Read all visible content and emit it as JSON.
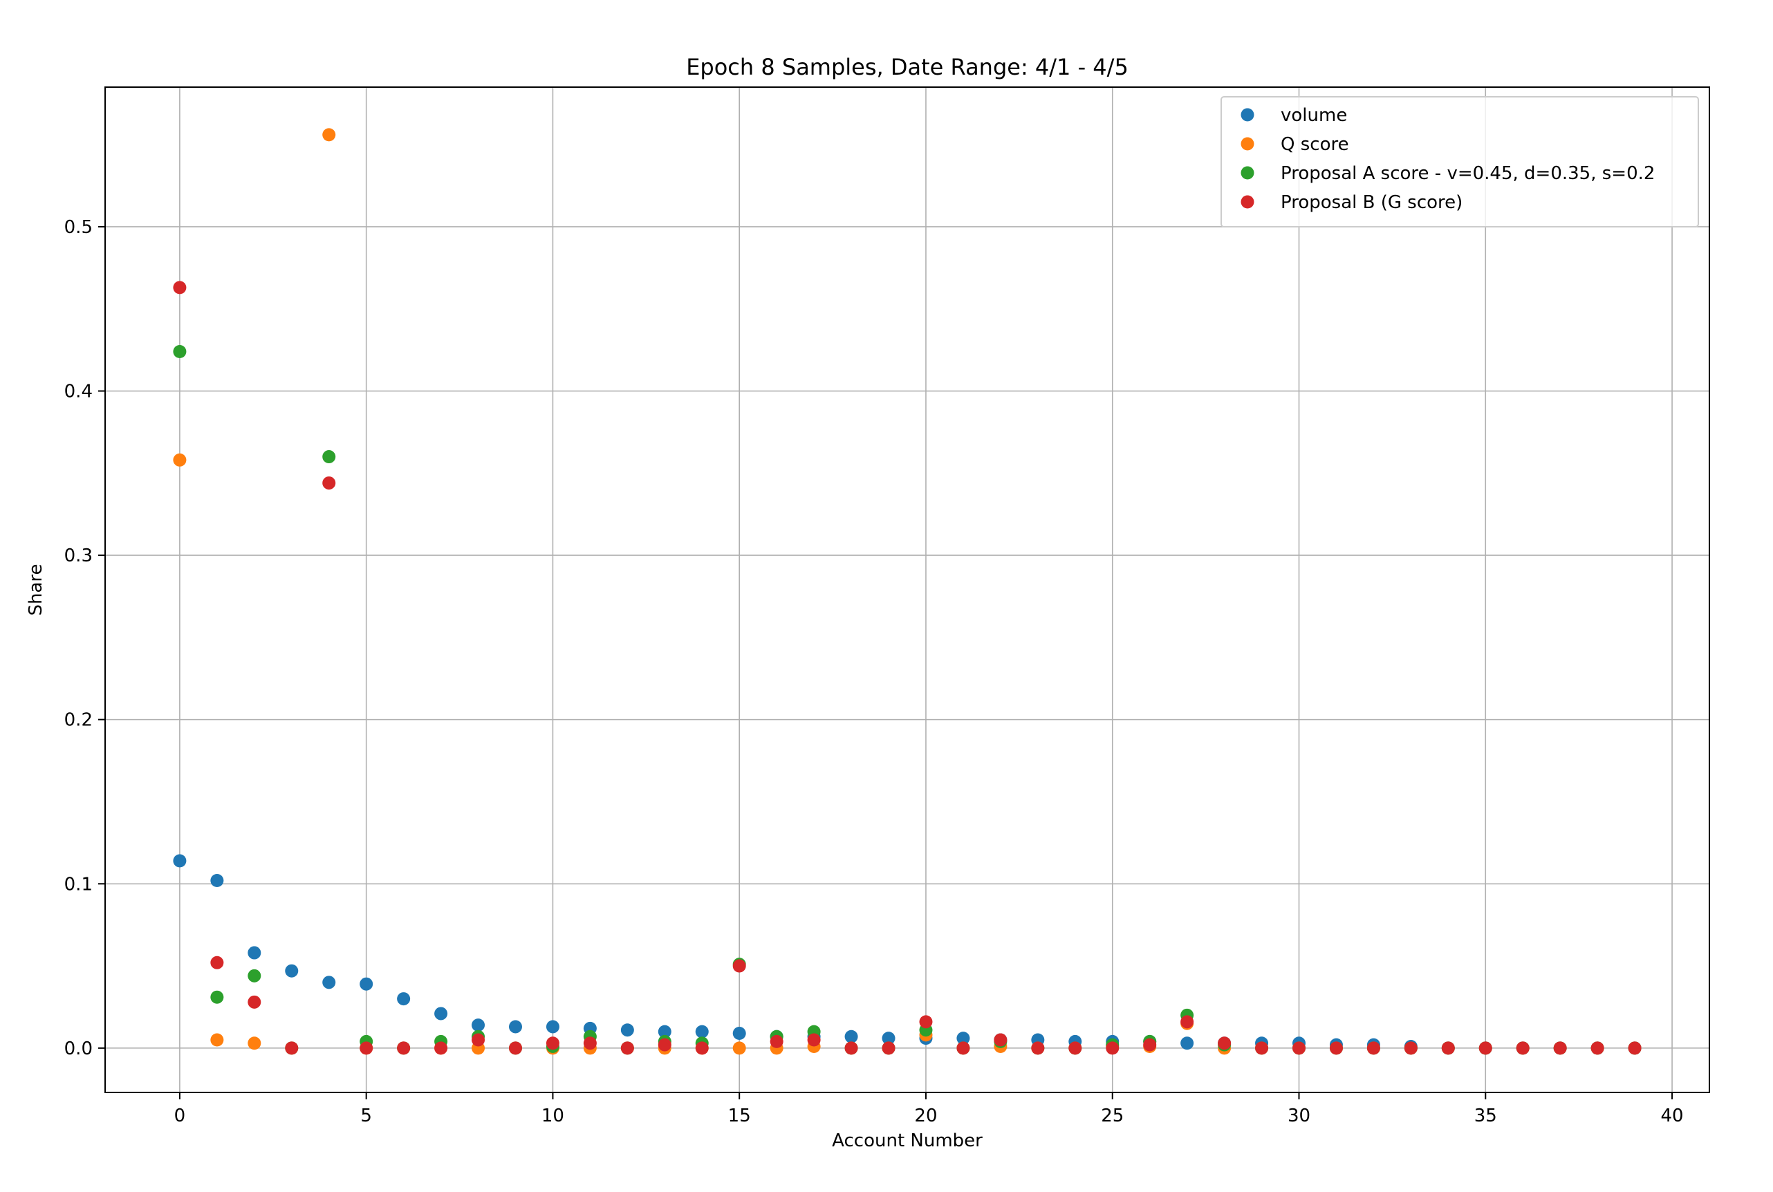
{
  "chart_data": {
    "type": "scatter",
    "title": "Epoch 8 Samples, Date Range: 4/1 - 4/5",
    "xlabel": "Account Number",
    "ylabel": "Share",
    "xlim": [
      -2,
      41
    ],
    "ylim": [
      -0.027,
      0.585
    ],
    "xticks": [
      0,
      5,
      10,
      15,
      20,
      25,
      30,
      35,
      40
    ],
    "yticks": [
      0.0,
      0.1,
      0.2,
      0.3,
      0.4,
      0.5
    ],
    "ytick_labels": [
      "0.0",
      "0.1",
      "0.2",
      "0.3",
      "0.4",
      "0.5"
    ],
    "grid": true,
    "legend_position": "top-right",
    "x": [
      0,
      1,
      2,
      3,
      4,
      5,
      6,
      7,
      8,
      9,
      10,
      11,
      12,
      13,
      14,
      15,
      16,
      17,
      18,
      19,
      20,
      21,
      22,
      23,
      24,
      25,
      26,
      27,
      28,
      29,
      30,
      31,
      32,
      33,
      34,
      35,
      36,
      37,
      38,
      39
    ],
    "series": [
      {
        "name": "volume",
        "color": "#1f77b4",
        "values": [
          0.114,
          0.102,
          0.058,
          0.047,
          0.04,
          0.039,
          0.03,
          0.021,
          0.014,
          0.013,
          0.013,
          0.012,
          0.011,
          0.01,
          0.01,
          0.009,
          0.007,
          0.007,
          0.007,
          0.006,
          0.006,
          0.006,
          0.005,
          0.005,
          0.004,
          0.004,
          0.004,
          0.003,
          0.003,
          0.003,
          0.003,
          0.002,
          0.002,
          0.001,
          0.0,
          0.0,
          0.0,
          0.0,
          0.0,
          0.0
        ]
      },
      {
        "name": "Q score",
        "color": "#ff7f0e",
        "values": [
          0.358,
          0.005,
          0.003,
          0.0,
          0.556,
          0.0,
          0.0,
          0.0,
          0.0,
          0.0,
          0.0,
          0.0,
          0.0,
          0.0,
          0.0,
          0.0,
          0.0,
          0.001,
          0.0,
          0.0,
          0.008,
          0.0,
          0.001,
          0.0,
          0.0,
          0.001,
          0.001,
          0.015,
          0.0,
          0.0,
          0.0,
          0.0,
          0.0,
          0.0,
          0.0,
          0.0,
          0.0,
          0.0,
          0.0,
          0.0
        ]
      },
      {
        "name": "Proposal A score - v=0.45, d=0.35, s=0.2",
        "color": "#2ca02c",
        "values": [
          0.424,
          0.031,
          0.044,
          0.0,
          0.36,
          0.004,
          0.0,
          0.004,
          0.007,
          0.0,
          0.001,
          0.007,
          0.0,
          0.004,
          0.003,
          0.051,
          0.007,
          0.01,
          0.0,
          0.0,
          0.011,
          0.0,
          0.004,
          0.0,
          0.0,
          0.002,
          0.004,
          0.02,
          0.002,
          0.0,
          0.0,
          0.0,
          0.0,
          0.0,
          0.0,
          0.0,
          0.0,
          0.0,
          0.0,
          0.0
        ]
      },
      {
        "name": "Proposal B (G score)",
        "color": "#d62728",
        "values": [
          0.463,
          0.052,
          0.028,
          0.0,
          0.344,
          0.0,
          0.0,
          0.0,
          0.005,
          0.0,
          0.003,
          0.003,
          0.0,
          0.002,
          0.0,
          0.05,
          0.004,
          0.005,
          0.0,
          0.0,
          0.016,
          0.0,
          0.005,
          0.0,
          0.0,
          0.0,
          0.002,
          0.016,
          0.003,
          0.0,
          0.0,
          0.0,
          0.0,
          0.0,
          0.0,
          0.0,
          0.0,
          0.0,
          0.0,
          0.0
        ]
      }
    ]
  }
}
